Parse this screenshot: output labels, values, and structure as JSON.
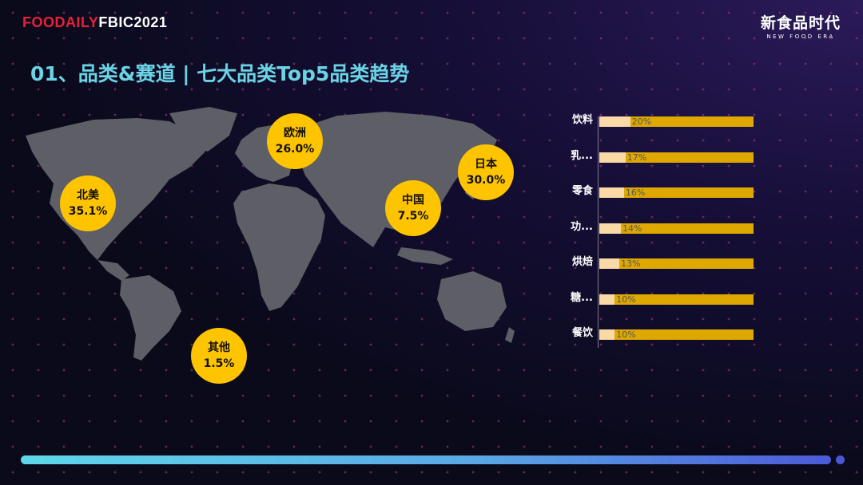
{
  "header": {
    "brand_left_red": "FOODAILY",
    "brand_left_white": "FBIC",
    "brand_left_year": "2021",
    "brand_right_cn": "新食品时代",
    "brand_right_en": "NEW FOOD ERA"
  },
  "title": "01、品类&赛道 | 七大品类Top5品类趋势",
  "map_bubbles": [
    {
      "name": "北美",
      "value": "35.1%"
    },
    {
      "name": "欧洲",
      "value": "26.0%"
    },
    {
      "name": "中国",
      "value": "7.5%"
    },
    {
      "name": "日本",
      "value": "30.0%"
    },
    {
      "name": "其他",
      "value": "1.5%"
    }
  ],
  "chart_data": {
    "type": "bar",
    "orientation": "horizontal",
    "categories": [
      "饮料",
      "乳...",
      "零食",
      "功...",
      "烘焙",
      "糖...",
      "餐饮"
    ],
    "values": [
      20,
      17,
      16,
      14,
      13,
      10,
      10
    ],
    "value_labels": [
      "20%",
      "17%",
      "16%",
      "14%",
      "13%",
      "10%",
      "10%"
    ],
    "colors": {
      "fill": "#fbd9a6",
      "track": "#dea800"
    }
  },
  "colors": {
    "title": "#6cd3e6",
    "bubble": "#ffc400",
    "brand_red": "#e8213a"
  }
}
